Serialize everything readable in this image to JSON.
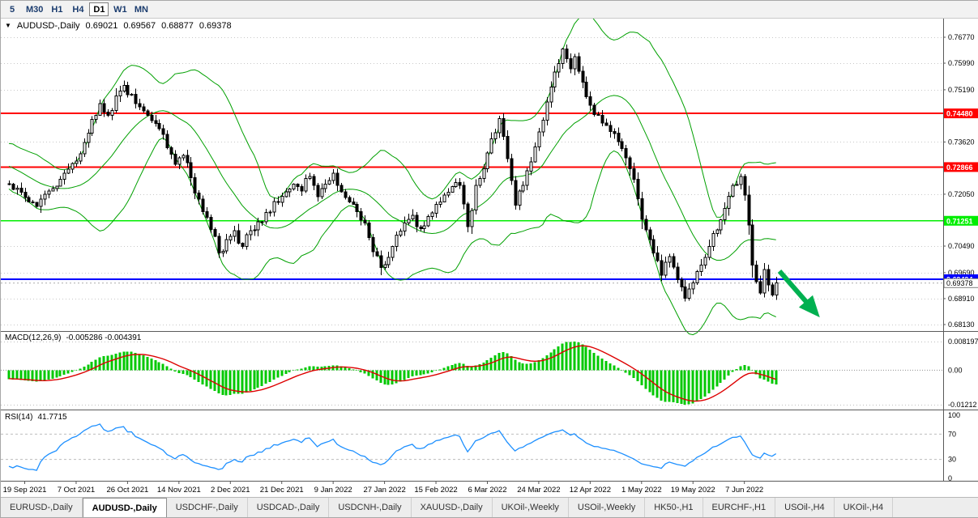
{
  "toolbar": {
    "timeframes": [
      {
        "label": "5",
        "active": false
      },
      {
        "label": "M30",
        "active": false
      },
      {
        "label": "H1",
        "active": false
      },
      {
        "label": "H4",
        "active": false
      },
      {
        "label": "D1",
        "active": true
      },
      {
        "label": "W1",
        "active": false
      },
      {
        "label": "MN",
        "active": false
      }
    ]
  },
  "chart_header": {
    "symbol": "AUDUSD-,Daily",
    "open": "0.69021",
    "high": "0.69567",
    "low": "0.68877",
    "close": "0.69378"
  },
  "bottom_tabs": {
    "active_index": 1,
    "tabs": [
      "EURUSD-,Daily",
      "AUDUSD-,Daily",
      "USDCHF-,Daily",
      "USDCAD-,Daily",
      "USDCNH-,Daily",
      "XAUUSD-,Daily",
      "UKOil-,Weekly",
      "USOil-,Weekly",
      "HK50-,H1",
      "EURCHF-,H1",
      "USOil-,H4",
      "UKOil-,H4"
    ]
  },
  "chart_data": {
    "type": "candlestick",
    "symbol": "AUDUSD",
    "period": "Daily",
    "n_candles": 195,
    "y_range": [
      0.6794,
      0.7733
    ],
    "x_label_first_index": 4,
    "x_label_every": 13,
    "colors": {
      "bull": "#ffffff",
      "bear": "#000000",
      "outline": "#000000",
      "bollinger": "#00A000",
      "macd_hist": "#00C800",
      "macd_signal": "#DD0000",
      "rsi": "#1E90FF",
      "grid": "#c8c8c8",
      "arrow": "#00B050"
    },
    "price_scale_ticks": [
      "0.76770",
      "0.75990",
      "0.75190",
      "0.73620",
      "0.72050",
      "0.70490",
      "0.69690",
      "0.68910",
      "0.68130"
    ],
    "levels": [
      {
        "price": 0.7448,
        "label": "0.74480",
        "color": "#FF0000"
      },
      {
        "price": 0.72866,
        "label": "0.72866",
        "color": "#FF0000"
      },
      {
        "price": 0.71251,
        "label": "0.71251",
        "color": "#00EE00"
      },
      {
        "price": 0.69494,
        "label": "0.69494",
        "color": "#0000FF"
      }
    ],
    "bid": {
      "price": 0.69378,
      "label": "0.69378"
    },
    "x_axis_dates": [
      "19 Sep 2021",
      "7 Oct 2021",
      "26 Oct 2021",
      "14 Nov 2021",
      "2 Dec 2021",
      "21 Dec 2021",
      "9 Jan 2022",
      "27 Jan 2022",
      "15 Feb 2022",
      "6 Mar 2022",
      "24 Mar 2022",
      "12 Apr 2022",
      "1 May 2022",
      "19 May 2022",
      "7 Jun 2022"
    ],
    "last_candle": [
      0.69021,
      0.69567,
      0.68877,
      0.69378
    ],
    "price_anchors": [
      [
        -40,
        0.743
      ],
      [
        -32,
        0.739
      ],
      [
        -24,
        0.735
      ],
      [
        -16,
        0.733
      ],
      [
        -8,
        0.7285
      ],
      [
        0,
        0.7235
      ],
      [
        4,
        0.7195
      ],
      [
        7,
        0.7168
      ],
      [
        10,
        0.7215
      ],
      [
        14,
        0.7268
      ],
      [
        17,
        0.7305
      ],
      [
        19,
        0.736
      ],
      [
        21,
        0.743
      ],
      [
        23,
        0.7478
      ],
      [
        25,
        0.7442
      ],
      [
        27,
        0.75
      ],
      [
        29,
        0.7532
      ],
      [
        31,
        0.7505
      ],
      [
        33,
        0.7468
      ],
      [
        35,
        0.7442
      ],
      [
        38,
        0.7402
      ],
      [
        40,
        0.7345
      ],
      [
        42,
        0.7295
      ],
      [
        44,
        0.7322
      ],
      [
        46,
        0.7255
      ],
      [
        48,
        0.719
      ],
      [
        50,
        0.7135
      ],
      [
        52,
        0.7078
      ],
      [
        53,
        0.7028
      ],
      [
        55,
        0.7068
      ],
      [
        57,
        0.7095
      ],
      [
        59,
        0.7048
      ],
      [
        61,
        0.7095
      ],
      [
        63,
        0.7122
      ],
      [
        65,
        0.715
      ],
      [
        68,
        0.718
      ],
      [
        70,
        0.7212
      ],
      [
        72,
        0.7235
      ],
      [
        74,
        0.7215
      ],
      [
        76,
        0.7258
      ],
      [
        78,
        0.7198
      ],
      [
        80,
        0.7235
      ],
      [
        82,
        0.7268
      ],
      [
        84,
        0.7212
      ],
      [
        86,
        0.7182
      ],
      [
        88,
        0.7152
      ],
      [
        90,
        0.7118
      ],
      [
        92,
        0.7032
      ],
      [
        94,
        0.6985
      ],
      [
        96,
        0.7015
      ],
      [
        98,
        0.7082
      ],
      [
        100,
        0.7118
      ],
      [
        102,
        0.7142
      ],
      [
        104,
        0.7102
      ],
      [
        106,
        0.7138
      ],
      [
        108,
        0.7175
      ],
      [
        110,
        0.7202
      ],
      [
        112,
        0.7228
      ],
      [
        114,
        0.7232
      ],
      [
        116,
        0.7108
      ],
      [
        118,
        0.7232
      ],
      [
        120,
        0.7282
      ],
      [
        122,
        0.7372
      ],
      [
        124,
        0.7432
      ],
      [
        126,
        0.7312
      ],
      [
        128,
        0.7172
      ],
      [
        130,
        0.7232
      ],
      [
        132,
        0.7302
      ],
      [
        134,
        0.7392
      ],
      [
        136,
        0.7482
      ],
      [
        138,
        0.7572
      ],
      [
        140,
        0.7642
      ],
      [
        142,
        0.7582
      ],
      [
        143,
        0.7618
      ],
      [
        145,
        0.7542
      ],
      [
        147,
        0.7472
      ],
      [
        149,
        0.7442
      ],
      [
        151,
        0.7412
      ],
      [
        153,
        0.7388
      ],
      [
        155,
        0.7342
      ],
      [
        157,
        0.7282
      ],
      [
        159,
        0.7192
      ],
      [
        161,
        0.7098
      ],
      [
        163,
        0.7028
      ],
      [
        165,
        0.6962
      ],
      [
        167,
        0.7018
      ],
      [
        169,
        0.6948
      ],
      [
        171,
        0.6892
      ],
      [
        173,
        0.6938
      ],
      [
        175,
        0.6992
      ],
      [
        177,
        0.7048
      ],
      [
        179,
        0.7098
      ],
      [
        181,
        0.7162
      ],
      [
        183,
        0.7232
      ],
      [
        185,
        0.7258
      ],
      [
        186,
        0.7202
      ],
      [
        187,
        0.7112
      ],
      [
        188,
        0.6992
      ],
      [
        189,
        0.6942
      ],
      [
        190,
        0.6908
      ],
      [
        191,
        0.6978
      ],
      [
        192,
        0.6932
      ],
      [
        193,
        0.69021
      ],
      [
        194,
        0.69378
      ]
    ],
    "indicators": {
      "bollinger": {
        "name": "Bollinger Bands",
        "period": 20,
        "deviation": 2
      },
      "macd": {
        "name": "MACD(12,26,9)",
        "values": "-0.005286 -0.004391",
        "scale_top": "0.008197",
        "scale_zero": "0.00",
        "scale_bottom": "-0.01212"
      },
      "rsi": {
        "name": "RSI(14)",
        "value": "41.7715",
        "scale": [
          {
            "label": "100",
            "value": 100
          },
          {
            "label": "70",
            "value": 70
          },
          {
            "label": "30",
            "value": 30
          },
          {
            "label": "0",
            "value": 0
          }
        ],
        "levels": [
          70,
          30
        ]
      }
    },
    "annotation_arrow": {
      "color": "#00B050",
      "direction": "down-right"
    }
  }
}
